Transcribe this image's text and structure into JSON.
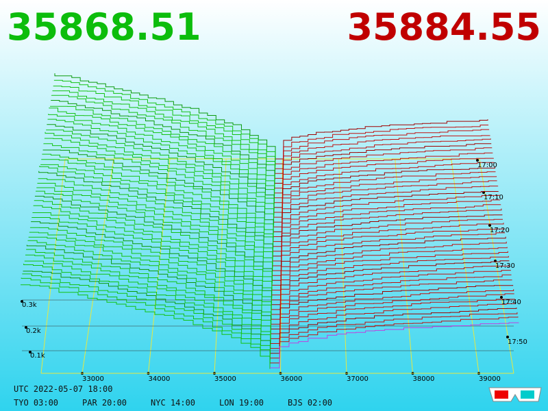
{
  "header": {
    "bid": "35868.51",
    "ask": "35884.55"
  },
  "price_axis": [
    "33000",
    "34000",
    "35000",
    "36000",
    "37000",
    "38000",
    "39000"
  ],
  "depth_axis": [
    "0.3k",
    "0.2k",
    "0.1k"
  ],
  "time_axis": [
    "17:00",
    "17:10",
    "17:20",
    "17:30",
    "17:40",
    "17:50"
  ],
  "footer": {
    "utc": "UTC 2022-05-07 18:00",
    "cities": [
      "TYO 03:00",
      "PAR 20:00",
      "NYC 14:00",
      "LON 19:00",
      "BJS 02:00"
    ]
  }
}
